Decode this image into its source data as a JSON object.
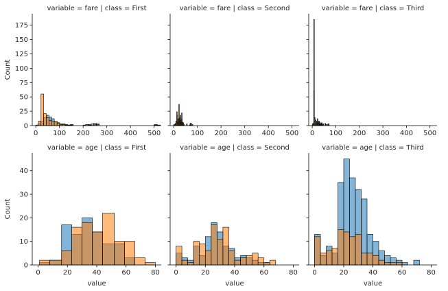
{
  "colors": {
    "series_a": "#1f77b4",
    "series_b": "#ff7f0e",
    "edge": "#000000",
    "alpha": 0.55
  },
  "figure": {
    "ylabel": "Count",
    "xlabel": "value"
  },
  "chart_data": [
    {
      "type": "bar",
      "title": "variable = fare | class = First",
      "xlim": [
        -15,
        530
      ],
      "ylim": [
        0,
        195
      ],
      "xticks": [
        0,
        100,
        200,
        300,
        400,
        500
      ],
      "yticks": [
        0,
        25,
        50,
        75,
        100,
        125,
        150,
        175
      ],
      "ylabel": "Count",
      "xlabel": "",
      "series": [
        {
          "bins": [
            [
              10,
              21,
              3
            ],
            [
              21,
              33,
              7
            ],
            [
              33,
              44,
              14
            ],
            [
              44,
              56,
              18
            ],
            [
              56,
              67,
              15
            ],
            [
              67,
              78,
              12
            ],
            [
              78,
              90,
              6
            ],
            [
              90,
              101,
              5
            ],
            [
              101,
              112,
              3
            ],
            [
              112,
              124,
              3
            ],
            [
              124,
              135,
              2
            ],
            [
              135,
              146,
              1
            ],
            [
              146,
              158,
              2
            ],
            [
              200,
              211,
              1
            ],
            [
              211,
              222,
              2
            ],
            [
              222,
              234,
              2
            ],
            [
              234,
              245,
              3
            ],
            [
              245,
              256,
              4
            ],
            [
              256,
              268,
              3
            ],
            [
              500,
              514,
              2
            ],
            [
              514,
              526,
              1
            ]
          ]
        },
        {
          "bins": [
            [
              0,
              11,
              1
            ],
            [
              11,
              22,
              8
            ],
            [
              22,
              33,
              55
            ],
            [
              33,
              44,
              21
            ],
            [
              44,
              56,
              14
            ],
            [
              56,
              67,
              9
            ],
            [
              67,
              78,
              7
            ],
            [
              78,
              90,
              8
            ],
            [
              90,
              101,
              4
            ],
            [
              101,
              112,
              2
            ],
            [
              112,
              124,
              2
            ],
            [
              124,
              135,
              1
            ],
            [
              135,
              146,
              1
            ],
            [
              146,
              158,
              1
            ],
            [
              211,
              222,
              2
            ],
            [
              222,
              234,
              1
            ],
            [
              245,
              256,
              2
            ],
            [
              256,
              268,
              2
            ],
            [
              500,
              514,
              1
            ]
          ]
        }
      ]
    },
    {
      "type": "bar",
      "title": "variable = fare | class = Second",
      "xlim": [
        -15,
        530
      ],
      "ylim": [
        0,
        195
      ],
      "xticks": [
        0,
        100,
        200,
        300,
        400,
        500
      ],
      "yticks": [
        0,
        25,
        50,
        75,
        100,
        125,
        150,
        175
      ],
      "ylabel": "",
      "xlabel": "",
      "series": [
        {
          "bins": [
            [
              0,
              3,
              2
            ],
            [
              3,
              6,
              1
            ],
            [
              6,
              9,
              4
            ],
            [
              9,
              12,
              8
            ],
            [
              12,
              15,
              18
            ],
            [
              15,
              18,
              6
            ],
            [
              18,
              21,
              9
            ],
            [
              21,
              24,
              12
            ],
            [
              24,
              27,
              6
            ],
            [
              27,
              30,
              10
            ],
            [
              30,
              33,
              4
            ],
            [
              33,
              36,
              22
            ],
            [
              36,
              39,
              3
            ],
            [
              39,
              42,
              5
            ],
            [
              42,
              45,
              2
            ],
            [
              54,
              57,
              3
            ],
            [
              69,
              72,
              2
            ],
            [
              72,
              75,
              4
            ]
          ]
        },
        {
          "bins": [
            [
              3,
              6,
              1
            ],
            [
              6,
              9,
              2
            ],
            [
              9,
              12,
              7
            ],
            [
              12,
              15,
              24
            ],
            [
              15,
              18,
              4
            ],
            [
              18,
              21,
              12
            ],
            [
              21,
              24,
              37
            ],
            [
              24,
              27,
              14
            ],
            [
              27,
              30,
              18
            ],
            [
              30,
              33,
              6
            ],
            [
              33,
              36,
              11
            ],
            [
              36,
              39,
              6
            ],
            [
              39,
              42,
              3
            ],
            [
              42,
              45,
              1
            ],
            [
              54,
              57,
              2
            ],
            [
              66,
              69,
              1
            ],
            [
              69,
              72,
              4
            ],
            [
              72,
              75,
              3
            ],
            [
              78,
              81,
              2
            ]
          ]
        }
      ]
    },
    {
      "type": "bar",
      "title": "variable = fare | class = Third",
      "xlim": [
        -15,
        530
      ],
      "ylim": [
        0,
        195
      ],
      "xticks": [
        0,
        100,
        200,
        300,
        400,
        500
      ],
      "yticks": [
        0,
        25,
        50,
        75,
        100,
        125,
        150,
        175
      ],
      "ylabel": "",
      "xlabel": "",
      "series": [
        {
          "bins": [
            [
              0,
              3,
              3
            ],
            [
              3,
              6,
              4
            ],
            [
              6,
              9,
              185
            ],
            [
              9,
              12,
              14
            ],
            [
              12,
              15,
              10
            ],
            [
              15,
              18,
              6
            ],
            [
              18,
              21,
              8
            ],
            [
              21,
              24,
              12
            ],
            [
              24,
              27,
              5
            ],
            [
              27,
              30,
              8
            ],
            [
              30,
              33,
              6
            ],
            [
              33,
              36,
              3
            ],
            [
              36,
              39,
              4
            ],
            [
              39,
              42,
              5
            ],
            [
              45,
              48,
              3
            ],
            [
              54,
              57,
              4
            ],
            [
              60,
              63,
              2
            ],
            [
              66,
              69,
              3
            ],
            [
              69,
              72,
              3
            ]
          ]
        },
        {
          "bins": [
            [
              3,
              6,
              2
            ],
            [
              6,
              9,
              60
            ],
            [
              9,
              12,
              8
            ],
            [
              12,
              15,
              9
            ],
            [
              15,
              18,
              4
            ],
            [
              18,
              21,
              3
            ],
            [
              21,
              24,
              5
            ],
            [
              24,
              27,
              2
            ],
            [
              27,
              30,
              4
            ],
            [
              30,
              33,
              2
            ],
            [
              36,
              39,
              2
            ],
            [
              39,
              42,
              3
            ],
            [
              45,
              48,
              2
            ],
            [
              54,
              57,
              2
            ],
            [
              66,
              69,
              2
            ]
          ]
        }
      ]
    },
    {
      "type": "bar",
      "title": "variable = age | class = First",
      "xlim": [
        -4,
        84
      ],
      "ylim": [
        0,
        47.5
      ],
      "xticks": [
        0,
        20,
        40,
        60,
        80
      ],
      "yticks": [
        0,
        10,
        20,
        30,
        40
      ],
      "ylabel": "Count",
      "xlabel": "value",
      "series": [
        {
          "bins": [
            [
              1,
              8,
              1
            ],
            [
              8,
              16,
              2
            ],
            [
              16,
              23,
              17
            ],
            [
              23,
              30,
              13
            ],
            [
              30,
              37,
              20
            ],
            [
              37,
              44,
              14
            ],
            [
              44,
              52,
              9
            ],
            [
              52,
              59,
              9
            ],
            [
              59,
              66,
              3
            ],
            [
              66,
              73,
              0
            ],
            [
              73,
              80,
              0
            ]
          ]
        },
        {
          "bins": [
            [
              1,
              8,
              2
            ],
            [
              8,
              16,
              2
            ],
            [
              16,
              23,
              6
            ],
            [
              23,
              30,
              16
            ],
            [
              30,
              37,
              18
            ],
            [
              37,
              44,
              14
            ],
            [
              44,
              52,
              22
            ],
            [
              52,
              59,
              10
            ],
            [
              59,
              66,
              10
            ],
            [
              66,
              73,
              3
            ],
            [
              73,
              80,
              1
            ]
          ]
        }
      ]
    },
    {
      "type": "bar",
      "title": "variable = age | class = Second",
      "xlim": [
        -4,
        84
      ],
      "ylim": [
        0,
        47.5
      ],
      "xticks": [
        0,
        20,
        40,
        60,
        80
      ],
      "yticks": [
        0,
        10,
        20,
        30,
        40
      ],
      "ylabel": "",
      "xlabel": "value",
      "series": [
        {
          "bins": [
            [
              0,
              4,
              5
            ],
            [
              4,
              8,
              3
            ],
            [
              8,
              12,
              2
            ],
            [
              12,
              16,
              8
            ],
            [
              16,
              20,
              4
            ],
            [
              20,
              24,
              12
            ],
            [
              24,
              28,
              18
            ],
            [
              28,
              32,
              14
            ],
            [
              32,
              36,
              8
            ],
            [
              36,
              40,
              7
            ],
            [
              40,
              44,
              3
            ],
            [
              44,
              48,
              4
            ],
            [
              48,
              52,
              3
            ],
            [
              52,
              56,
              2
            ],
            [
              56,
              60,
              1
            ],
            [
              60,
              64,
              1
            ],
            [
              64,
              68,
              0
            ]
          ]
        },
        {
          "bins": [
            [
              0,
              4,
              8
            ],
            [
              4,
              8,
              2
            ],
            [
              8,
              12,
              1
            ],
            [
              12,
              16,
              10
            ],
            [
              16,
              20,
              9
            ],
            [
              20,
              24,
              6
            ],
            [
              24,
              28,
              17
            ],
            [
              28,
              32,
              11
            ],
            [
              32,
              36,
              16
            ],
            [
              36,
              40,
              6
            ],
            [
              40,
              44,
              2
            ],
            [
              44,
              48,
              3
            ],
            [
              48,
              52,
              4
            ],
            [
              52,
              56,
              5
            ],
            [
              56,
              60,
              3
            ],
            [
              60,
              64,
              1
            ],
            [
              64,
              68,
              2
            ]
          ]
        }
      ]
    },
    {
      "type": "bar",
      "title": "variable = age | class = Third",
      "xlim": [
        -4,
        84
      ],
      "ylim": [
        0,
        47.5
      ],
      "xticks": [
        0,
        20,
        40,
        60,
        80
      ],
      "yticks": [
        0,
        10,
        20,
        30,
        40
      ],
      "ylabel": "",
      "xlabel": "value",
      "series": [
        {
          "bins": [
            [
              0,
              4,
              13
            ],
            [
              4,
              8,
              4
            ],
            [
              8,
              12,
              8
            ],
            [
              12,
              16,
              5
            ],
            [
              16,
              20,
              35
            ],
            [
              20,
              24,
              45
            ],
            [
              24,
              28,
              37
            ],
            [
              28,
              32,
              32
            ],
            [
              32,
              36,
              28
            ],
            [
              36,
              40,
              13
            ],
            [
              40,
              44,
              10
            ],
            [
              44,
              48,
              6
            ],
            [
              48,
              52,
              4
            ],
            [
              52,
              56,
              3
            ],
            [
              56,
              60,
              2
            ],
            [
              60,
              64,
              1
            ],
            [
              64,
              68,
              0
            ],
            [
              68,
              72,
              2
            ]
          ]
        },
        {
          "bins": [
            [
              0,
              4,
              12
            ],
            [
              4,
              8,
              5
            ],
            [
              8,
              12,
              6
            ],
            [
              12,
              16,
              7
            ],
            [
              16,
              20,
              15
            ],
            [
              20,
              24,
              14
            ],
            [
              24,
              28,
              12
            ],
            [
              28,
              32,
              13
            ],
            [
              32,
              36,
              5
            ],
            [
              36,
              40,
              5
            ],
            [
              40,
              44,
              4
            ],
            [
              44,
              48,
              2
            ],
            [
              48,
              52,
              1
            ],
            [
              52,
              56,
              1
            ],
            [
              56,
              60,
              1
            ]
          ]
        }
      ]
    }
  ]
}
